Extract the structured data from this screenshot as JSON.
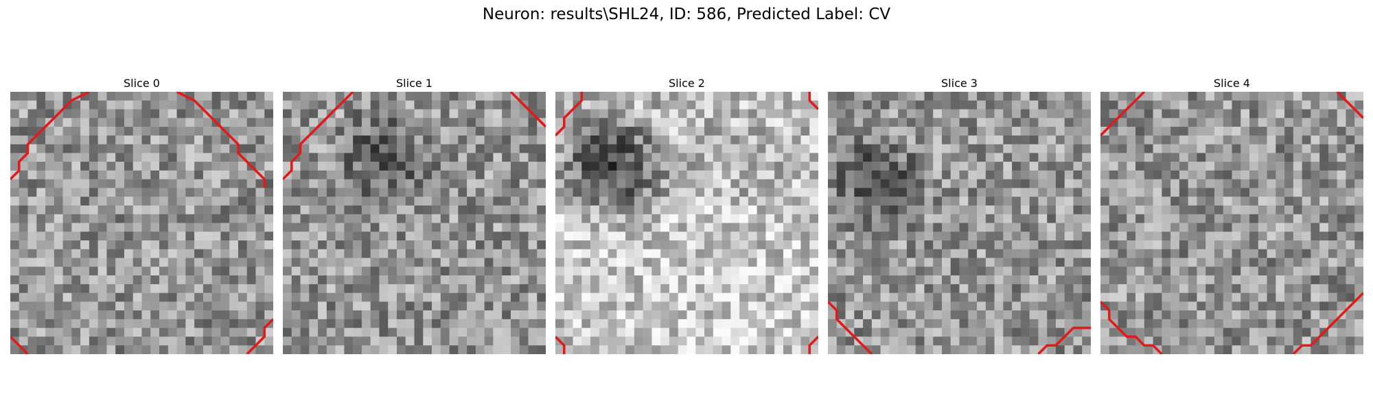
{
  "figure": {
    "suptitle": "Neuron: results\\SHL24, ID: 586, Predicted Label: CV"
  },
  "colors": {
    "contour": "#e01b1b",
    "background": "#ffffff"
  },
  "panels": [
    {
      "title": "Slice 0",
      "seed": 11,
      "dark_blob": null
    },
    {
      "title": "Slice 1",
      "seed": 23,
      "dark_blob": "upper-center"
    },
    {
      "title": "Slice 2",
      "seed": 37,
      "dark_blob": "upper-left-strong"
    },
    {
      "title": "Slice 3",
      "seed": 53,
      "dark_blob": "left"
    },
    {
      "title": "Slice 4",
      "seed": 71,
      "dark_blob": null
    }
  ]
}
